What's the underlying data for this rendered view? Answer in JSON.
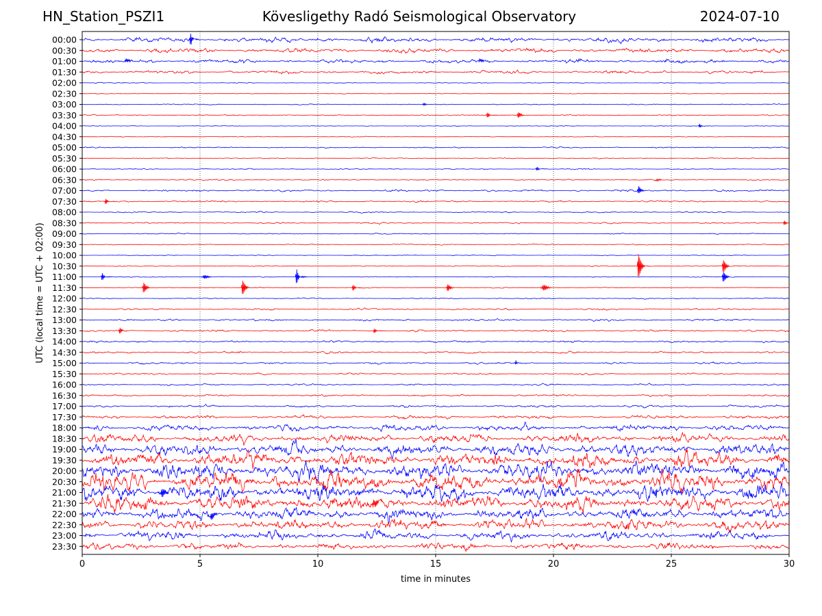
{
  "header": {
    "station": "HN_Station_PSZI1",
    "observatory": "Kövesligethy Radó Seismological Observatory",
    "date": "2024-07-10"
  },
  "chart_data": {
    "type": "line",
    "title": "Kövesligethy Radó Seismological Observatory",
    "xlabel": "time in minutes",
    "ylabel": "UTC (local time = UTC + 02:00)",
    "xlim": [
      0,
      30
    ],
    "xticks": [
      "0",
      "5",
      "10",
      "15",
      "20",
      "25",
      "30"
    ],
    "grid": "vertical dotted at each x tick",
    "row_labels": [
      "00:00",
      "00:30",
      "01:00",
      "01:30",
      "02:00",
      "02:30",
      "03:00",
      "03:30",
      "04:00",
      "04:30",
      "05:00",
      "05:30",
      "06:00",
      "06:30",
      "07:00",
      "07:30",
      "08:00",
      "08:30",
      "09:00",
      "09:30",
      "10:00",
      "10:30",
      "11:00",
      "11:30",
      "12:00",
      "12:30",
      "13:00",
      "13:30",
      "14:00",
      "14:30",
      "15:00",
      "15:30",
      "16:00",
      "16:30",
      "17:00",
      "17:30",
      "18:00",
      "18:30",
      "19:00",
      "19:30",
      "20:00",
      "20:30",
      "21:00",
      "21:30",
      "22:00",
      "22:30",
      "23:00",
      "23:30"
    ],
    "colors": [
      "#0000ff",
      "#ff0000"
    ],
    "noise_amplitude": [
      0.8,
      0.7,
      0.6,
      0.45,
      0.12,
      0.1,
      0.15,
      0.15,
      0.1,
      0.1,
      0.18,
      0.15,
      0.15,
      0.18,
      0.3,
      0.25,
      0.2,
      0.2,
      0.15,
      0.15,
      0.12,
      0.12,
      0.12,
      0.12,
      0.15,
      0.25,
      0.3,
      0.3,
      0.3,
      0.3,
      0.3,
      0.25,
      0.25,
      0.3,
      0.35,
      0.5,
      0.9,
      1.3,
      1.8,
      2.3,
      2.6,
      2.8,
      2.6,
      2.2,
      1.8,
      1.6,
      1.3,
      1.0
    ],
    "events": [
      {
        "row": 0,
        "minute": 4.6,
        "amplitude": 1.5
      },
      {
        "row": 2,
        "minute": 1.8,
        "amplitude": 1.3
      },
      {
        "row": 2,
        "minute": 16.8,
        "amplitude": 1.0
      },
      {
        "row": 6,
        "minute": 14.5,
        "amplitude": 0.4
      },
      {
        "row": 7,
        "minute": 17.2,
        "amplitude": 0.7
      },
      {
        "row": 7,
        "minute": 18.5,
        "amplitude": 0.7
      },
      {
        "row": 8,
        "minute": 26.2,
        "amplitude": 0.5
      },
      {
        "row": 12,
        "minute": 19.3,
        "amplitude": 0.5
      },
      {
        "row": 13,
        "minute": 24.3,
        "amplitude": 0.6
      },
      {
        "row": 14,
        "minute": 23.6,
        "amplitude": 0.9
      },
      {
        "row": 15,
        "minute": 1.0,
        "amplitude": 0.7
      },
      {
        "row": 17,
        "minute": 29.8,
        "amplitude": 0.6
      },
      {
        "row": 21,
        "minute": 23.6,
        "amplitude": 3.0
      },
      {
        "row": 21,
        "minute": 27.2,
        "amplitude": 1.6
      },
      {
        "row": 22,
        "minute": 0.85,
        "amplitude": 1.0
      },
      {
        "row": 22,
        "minute": 5.1,
        "amplitude": 1.4
      },
      {
        "row": 22,
        "minute": 9.1,
        "amplitude": 2.0
      },
      {
        "row": 22,
        "minute": 27.2,
        "amplitude": 1.3
      },
      {
        "row": 23,
        "minute": 2.6,
        "amplitude": 1.3
      },
      {
        "row": 23,
        "minute": 6.8,
        "amplitude": 1.8
      },
      {
        "row": 23,
        "minute": 11.5,
        "amplitude": 0.8
      },
      {
        "row": 23,
        "minute": 15.5,
        "amplitude": 0.9
      },
      {
        "row": 23,
        "minute": 19.5,
        "amplitude": 2.2
      },
      {
        "row": 27,
        "minute": 1.6,
        "amplitude": 0.8
      },
      {
        "row": 27,
        "minute": 12.4,
        "amplitude": 0.6
      },
      {
        "row": 30,
        "minute": 18.4,
        "amplitude": 0.5
      },
      {
        "row": 42,
        "minute": 3.3,
        "amplitude": 3.0
      },
      {
        "row": 43,
        "minute": 12.3,
        "amplitude": 2.8
      },
      {
        "row": 44,
        "minute": 5.4,
        "amplitude": 2.6
      }
    ]
  }
}
